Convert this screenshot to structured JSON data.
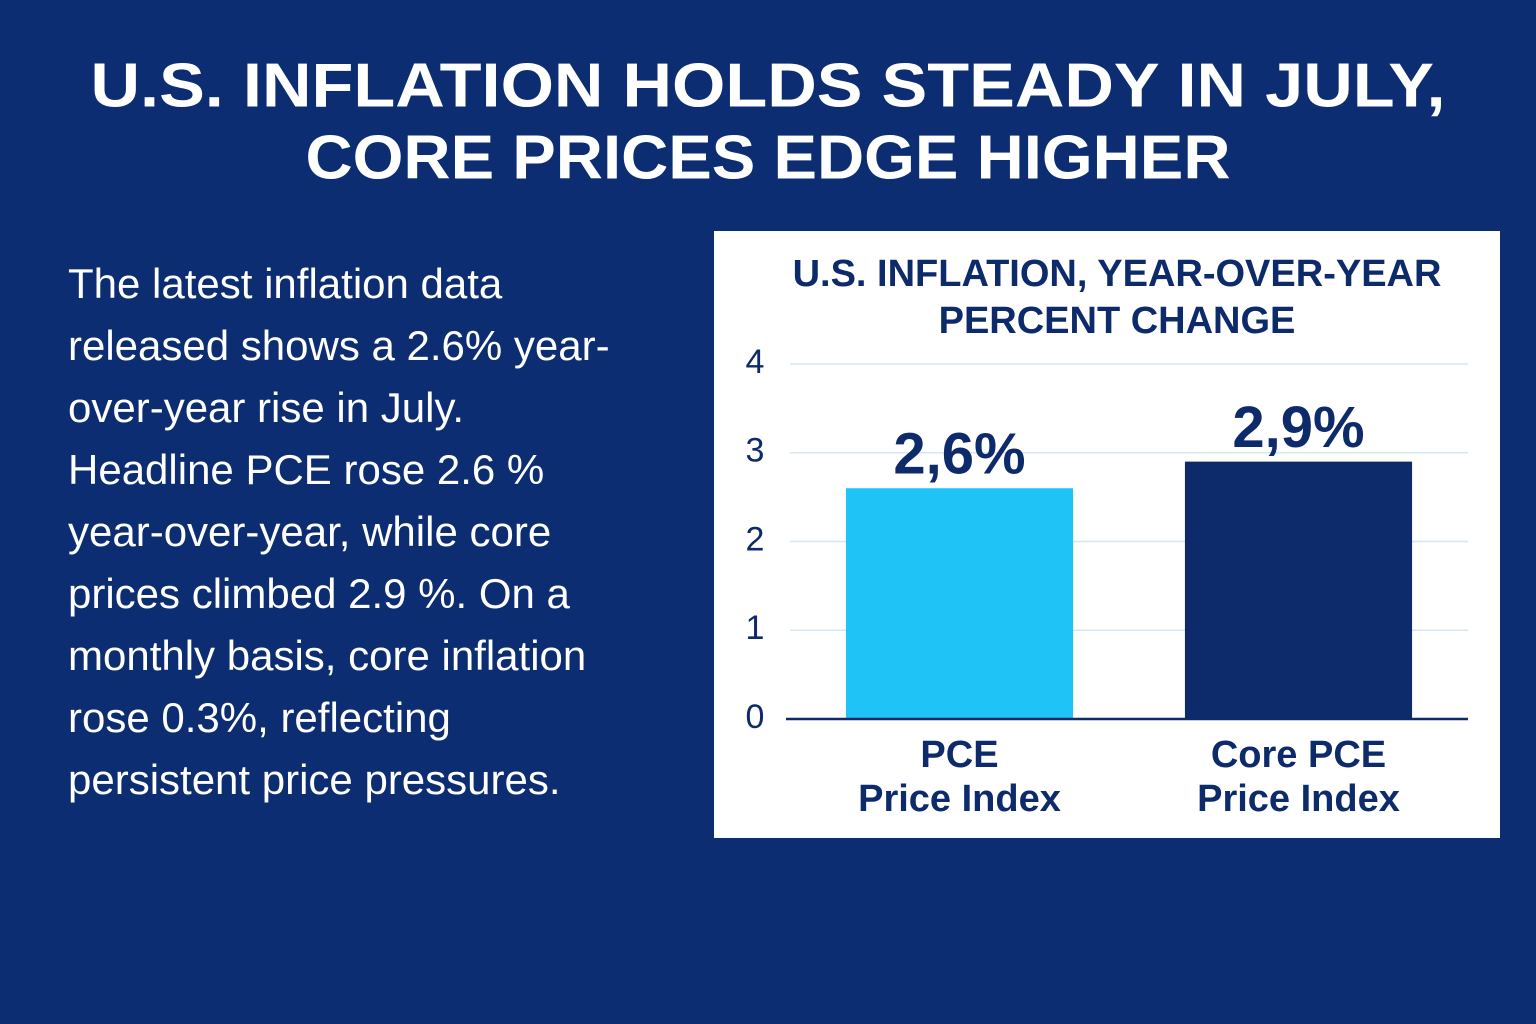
{
  "headline": [
    "U.S. INFLATION HOLDS STEADY IN JULY,",
    "CORE PRICES EDGE HIGHER"
  ],
  "body": [
    "The latest inflation data",
    "released shows a 2.6% year-",
    "over-year rise in July.",
    "Headline PCE rose 2.6 %",
    "year-over-year, while core",
    "prices climbed 2.9 %. On a",
    "monthly basis, core inflation",
    "rose 0.3%, reflecting",
    "persistent price pressures."
  ],
  "chart_data": {
    "type": "bar",
    "title": [
      "U.S. INFLATION, YEAR-OVER-YEAR",
      "PERCENT CHANGE"
    ],
    "categories": [
      "PCE\nPrice Index",
      "Core PCE\nPrice Index"
    ],
    "values": [
      2.6,
      2.9
    ],
    "value_labels": [
      "2,6%",
      "2,9%"
    ],
    "colors": [
      "#1fc3f5",
      "#0d2a6b"
    ],
    "ylim": [
      0,
      4
    ],
    "yticks": [
      0,
      1,
      2,
      3,
      4
    ],
    "grid": true
  }
}
